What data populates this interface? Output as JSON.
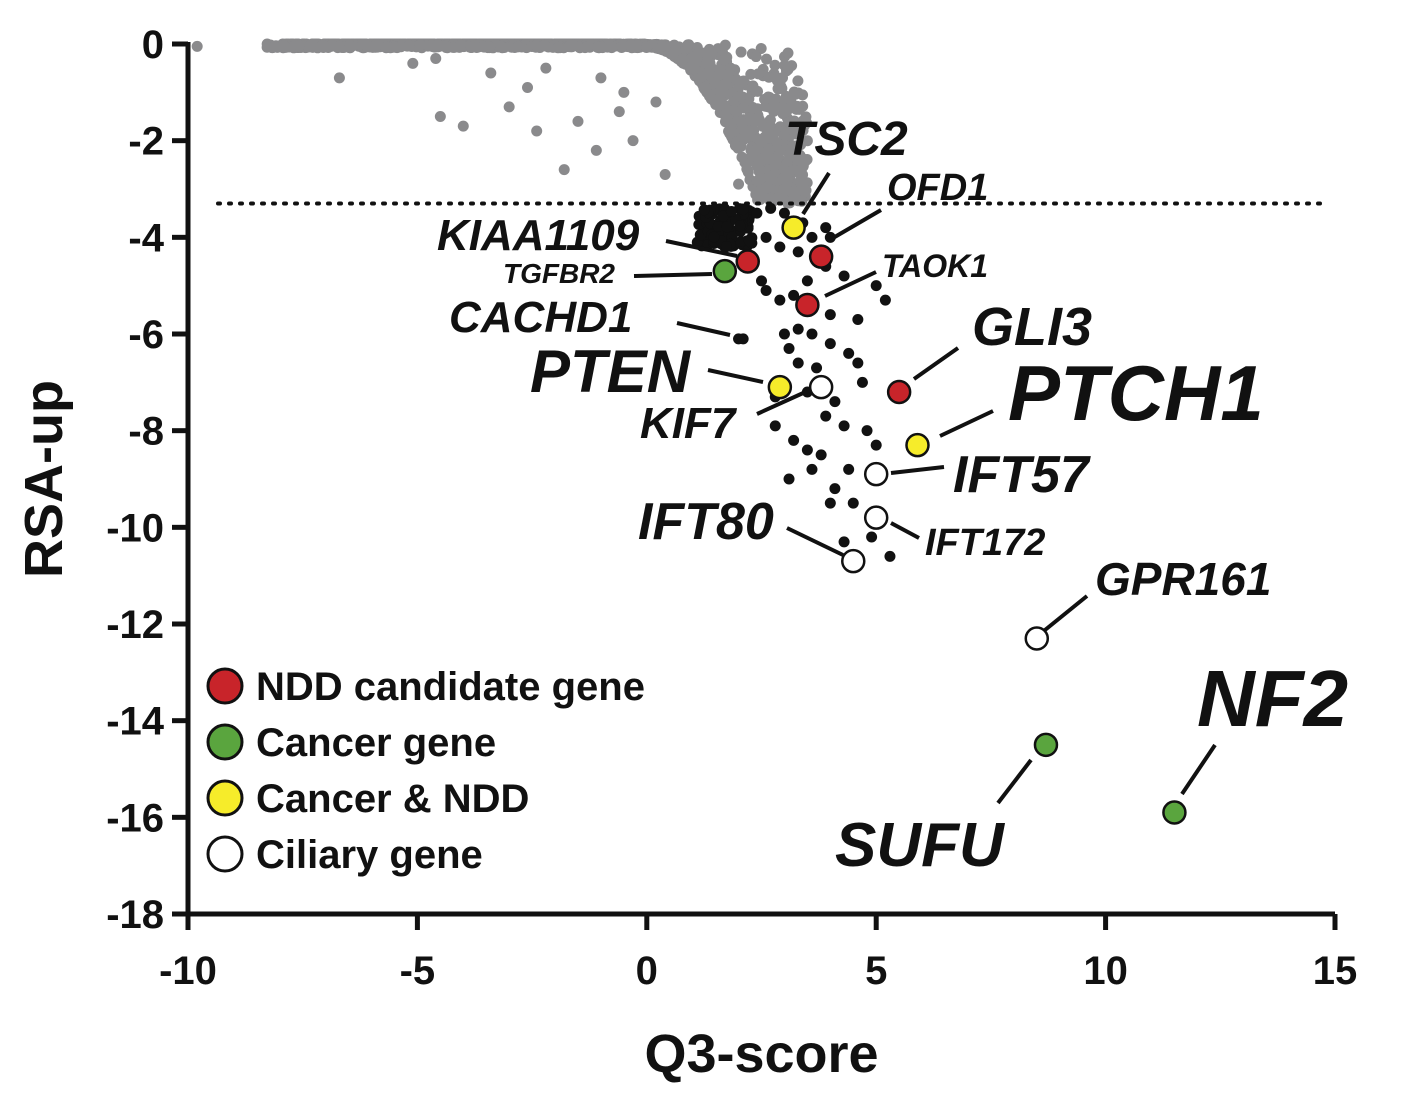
{
  "chart_data": {
    "type": "scatter",
    "title": "",
    "xlabel": "Q3-score",
    "ylabel": "RSA-up",
    "xlim": [
      -10,
      15
    ],
    "ylim": [
      -18,
      0
    ],
    "x_ticks": [
      -10,
      -5,
      0,
      5,
      10,
      15
    ],
    "y_ticks": [
      0,
      -2,
      -4,
      -6,
      -8,
      -10,
      -12,
      -14,
      -16,
      -18
    ],
    "x_tick_labels": [
      "-10",
      "-5",
      "0",
      "5",
      "10",
      "15"
    ],
    "y_tick_labels": [
      "0",
      "-2",
      "-4",
      "-6",
      "-8",
      "-10",
      "-12",
      "-14",
      "-16",
      "-18"
    ],
    "grid": false,
    "threshold_line": {
      "y": -3.3,
      "style": "dotted"
    },
    "colors": {
      "background_points": "#8a8a8c",
      "hit_points": "#111111",
      "ndd": "#c8242a",
      "cancer": "#5aa53e",
      "cancer_ndd": "#f6ec2a",
      "ciliary": "#ffffff"
    },
    "legend": {
      "placement": "bottom-left",
      "entries": [
        {
          "label": "NDD candidate gene",
          "category": "ndd"
        },
        {
          "label": "Cancer gene",
          "category": "cancer"
        },
        {
          "label": "Cancer & NDD",
          "category": "cancer_ndd"
        },
        {
          "label": "Ciliary gene",
          "category": "ciliary"
        }
      ]
    },
    "background_points": [
      [
        -9.8,
        -0.05
      ],
      [
        -6.7,
        -0.7
      ],
      [
        -5.1,
        -0.4
      ],
      [
        -4.5,
        -1.5
      ],
      [
        -4.0,
        -1.7
      ],
      [
        -3.4,
        -0.6
      ],
      [
        -3.0,
        -1.3
      ],
      [
        -2.6,
        -0.9
      ],
      [
        -2.4,
        -1.8
      ],
      [
        -1.8,
        -2.6
      ],
      [
        -1.5,
        -1.6
      ],
      [
        -1.1,
        -2.2
      ],
      [
        -0.6,
        -1.4
      ],
      [
        -0.3,
        -2.0
      ],
      [
        0.4,
        -2.7
      ],
      [
        -4.6,
        -0.3
      ],
      [
        -2.2,
        -0.5
      ],
      [
        -1.0,
        -0.7
      ],
      [
        -0.5,
        -1.0
      ],
      [
        0.2,
        -1.2
      ],
      [
        2.7,
        -2.8
      ],
      [
        3.0,
        -3.0
      ],
      [
        3.2,
        -3.2
      ],
      [
        2.0,
        -2.9
      ]
    ],
    "hit_points": [
      [
        2.4,
        -3.5
      ],
      [
        2.7,
        -3.4
      ],
      [
        3.0,
        -3.5
      ],
      [
        2.6,
        -4.0
      ],
      [
        2.9,
        -4.2
      ],
      [
        3.3,
        -4.3
      ],
      [
        3.6,
        -4.0
      ],
      [
        2.5,
        -4.9
      ],
      [
        2.6,
        -5.1
      ],
      [
        2.9,
        -5.3
      ],
      [
        3.2,
        -5.2
      ],
      [
        3.5,
        -4.9
      ],
      [
        3.9,
        -4.6
      ],
      [
        4.3,
        -4.8
      ],
      [
        4.0,
        -5.6
      ],
      [
        3.3,
        -5.9
      ],
      [
        3.0,
        -6.0
      ],
      [
        3.6,
        -6.0
      ],
      [
        4.0,
        -6.2
      ],
      [
        3.1,
        -6.3
      ],
      [
        3.3,
        -6.6
      ],
      [
        3.7,
        -6.7
      ],
      [
        3.0,
        -7.0
      ],
      [
        2.8,
        -7.3
      ],
      [
        3.5,
        -7.2
      ],
      [
        4.4,
        -6.4
      ],
      [
        4.6,
        -6.6
      ],
      [
        4.7,
        -7.0
      ],
      [
        4.1,
        -7.4
      ],
      [
        3.9,
        -7.7
      ],
      [
        4.3,
        -7.9
      ],
      [
        2.8,
        -7.9
      ],
      [
        3.2,
        -8.2
      ],
      [
        3.5,
        -8.4
      ],
      [
        3.8,
        -8.5
      ],
      [
        3.6,
        -8.8
      ],
      [
        3.1,
        -9.0
      ],
      [
        4.1,
        -9.2
      ],
      [
        4.0,
        -9.5
      ],
      [
        4.5,
        -9.5
      ],
      [
        4.4,
        -8.8
      ],
      [
        4.8,
        -8.0
      ],
      [
        5.0,
        -8.3
      ],
      [
        4.3,
        -10.3
      ],
      [
        4.9,
        -10.2
      ],
      [
        5.3,
        -10.6
      ],
      [
        5.0,
        -5.0
      ],
      [
        5.2,
        -5.3
      ],
      [
        4.6,
        -5.7
      ],
      [
        2.0,
        -6.1
      ],
      [
        2.3,
        -4.6
      ],
      [
        3.4,
        -3.7
      ],
      [
        3.9,
        -3.8
      ],
      [
        4.0,
        -4.0
      ]
    ],
    "highlighted_genes": [
      {
        "name": "TSC2",
        "x": 3.2,
        "y": -3.8,
        "category": "cancer_ndd"
      },
      {
        "name": "OFD1",
        "x": 3.8,
        "y": -4.4,
        "category": "ndd"
      },
      {
        "name": "KIAA1109",
        "x": 2.2,
        "y": -4.5,
        "category": "ndd"
      },
      {
        "name": "TGFBR2",
        "x": 1.7,
        "y": -4.7,
        "category": "cancer"
      },
      {
        "name": "TAOK1",
        "x": 3.5,
        "y": -5.4,
        "category": "ndd"
      },
      {
        "name": "CACHD1",
        "x": 2.1,
        "y": -6.1,
        "category": "none"
      },
      {
        "name": "GLI3",
        "x": 5.5,
        "y": -7.2,
        "category": "ndd"
      },
      {
        "name": "PTEN",
        "x": 2.9,
        "y": -7.1,
        "category": "cancer_ndd"
      },
      {
        "name": "KIF7",
        "x": 3.8,
        "y": -7.1,
        "category": "ciliary"
      },
      {
        "name": "PTCH1",
        "x": 5.9,
        "y": -8.3,
        "category": "cancer_ndd"
      },
      {
        "name": "IFT57",
        "x": 5.0,
        "y": -8.9,
        "category": "ciliary"
      },
      {
        "name": "IFT172",
        "x": 5.0,
        "y": -9.8,
        "category": "ciliary"
      },
      {
        "name": "IFT80",
        "x": 4.5,
        "y": -10.7,
        "category": "ciliary"
      },
      {
        "name": "GPR161",
        "x": 8.5,
        "y": -12.3,
        "category": "ciliary"
      },
      {
        "name": "SUFU",
        "x": 8.7,
        "y": -14.5,
        "category": "cancer"
      },
      {
        "name": "NF2",
        "x": 11.5,
        "y": -15.9,
        "category": "cancer"
      }
    ]
  }
}
